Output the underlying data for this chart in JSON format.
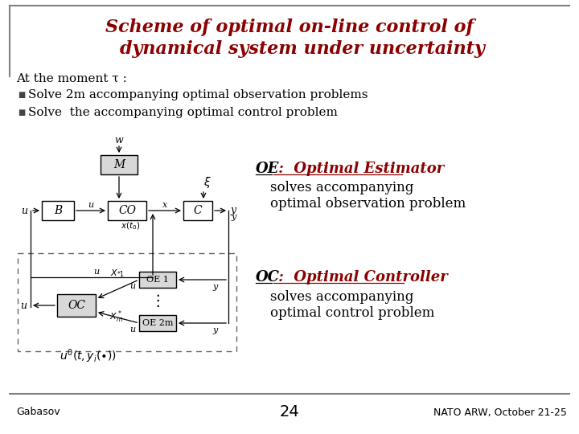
{
  "title_line1": "Scheme of optimal on-line control of",
  "title_line2": "    dynamical system under uncertainty",
  "title_color": "#8B0000",
  "bg_color": "#FFFFFF",
  "border_color": "#808080",
  "text_color": "#000000",
  "bullet_text1": "Solve 2m accompanying optimal observation problems",
  "bullet_text2": "Solve  the accompanying optimal control problem",
  "moment_text": "At the moment τ :",
  "oe_label": "OE",
  "oe_desc1": " :  Optimal Estimator",
  "oe_desc2": "solves accompanying",
  "oe_desc3": "optimal observation problem",
  "oc_label": "OC",
  "oc_desc1": " :  Optimal Controller",
  "oc_desc2": "solves accompanying",
  "oc_desc3": "optimal control problem",
  "footer_left": "Gabasov",
  "footer_center": "24",
  "footer_right": "NATO ARW, October 21-25",
  "red_color": "#8B0000",
  "box_gray": "#d8d8d8",
  "dashed_color": "#666666"
}
